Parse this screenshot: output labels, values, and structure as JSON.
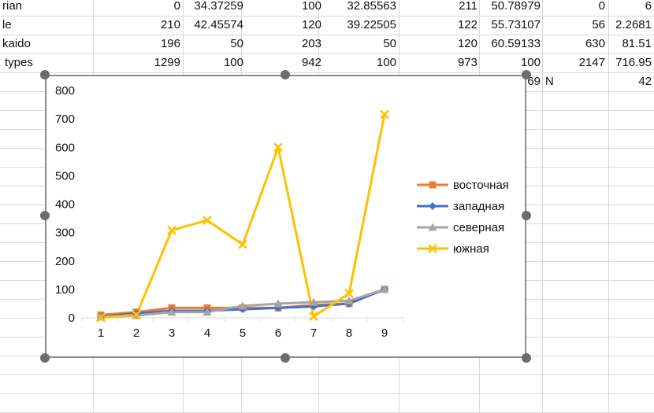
{
  "sheet": {
    "rows": [
      [
        "rian",
        "0",
        "34.37259",
        "",
        "100",
        "32.85563",
        "",
        "211",
        "50.78979",
        "0",
        "6"
      ],
      [
        "le",
        "210",
        "42.45574",
        "",
        "120",
        "39.22505",
        "",
        "122",
        "55.73107",
        "56",
        "2.2681"
      ],
      [
        "kaido",
        "196",
        "50",
        "",
        "203",
        "50",
        "",
        "120",
        "60.59133",
        "630",
        "81.51"
      ],
      [
        "types",
        "1299",
        "100",
        "",
        "942",
        "100",
        "",
        "973",
        "100",
        "2147",
        "716.95"
      ],
      [
        "",
        "",
        "",
        "",
        "",
        "",
        "",
        "",
        "69",
        "N",
        "42"
      ]
    ]
  },
  "chart_data": {
    "type": "line",
    "x": [
      1,
      2,
      3,
      4,
      5,
      6,
      7,
      8,
      9
    ],
    "ylim": [
      0,
      800
    ],
    "yticks": [
      0,
      100,
      200,
      300,
      400,
      500,
      600,
      700,
      800
    ],
    "grid": false,
    "legend_position": "right",
    "series": [
      {
        "name": "восточная",
        "color": "#ED7D31",
        "marker": "square",
        "values": [
          10,
          20,
          35,
          35,
          35,
          35,
          45,
          50,
          100
        ]
      },
      {
        "name": "западная",
        "color": "#4472C4",
        "marker": "diamond",
        "values": [
          5,
          15,
          25,
          25,
          30,
          35,
          40,
          50,
          100
        ]
      },
      {
        "name": "северная",
        "color": "#A5A5A5",
        "marker": "triangle",
        "values": [
          3,
          8,
          20,
          20,
          42,
          50,
          55,
          60,
          100
        ]
      },
      {
        "name": "южная",
        "color": "#FFC000",
        "marker": "x",
        "values": [
          0,
          10,
          308,
          343,
          258,
          600,
          5,
          85,
          716
        ]
      }
    ]
  }
}
